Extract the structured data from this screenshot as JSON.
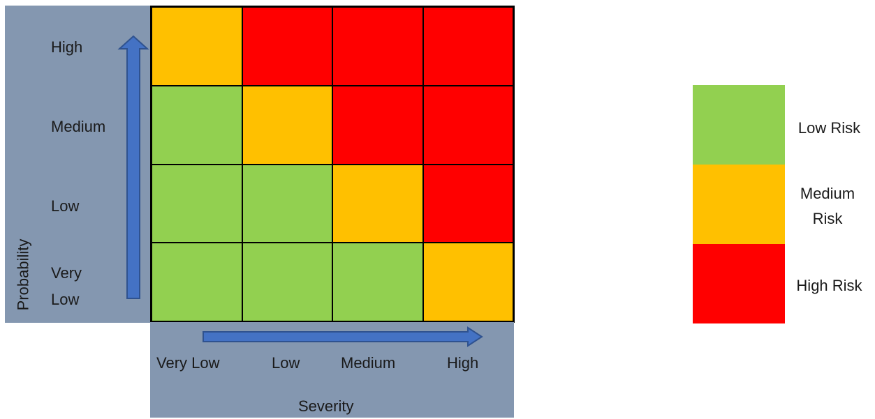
{
  "axes": {
    "probability_label": "Probability",
    "probability_levels": [
      "High",
      "Medium",
      "Low",
      "Very Low"
    ],
    "severity_label": "Severity",
    "severity_levels": [
      "Very Low",
      "Low",
      "Medium",
      "High"
    ]
  },
  "colors": {
    "low": "#92d050",
    "medium": "#ffc000",
    "high": "#ff0000",
    "panel": "#8497b0",
    "arrow": "#4472c4"
  },
  "matrix": [
    [
      "medium",
      "high",
      "high",
      "high"
    ],
    [
      "low",
      "medium",
      "high",
      "high"
    ],
    [
      "low",
      "low",
      "medium",
      "high"
    ],
    [
      "low",
      "low",
      "low",
      "medium"
    ]
  ],
  "legend": [
    {
      "key": "low",
      "label": "Low Risk"
    },
    {
      "key": "medium",
      "label": "Medium Risk"
    },
    {
      "key": "high",
      "label": "High Risk"
    }
  ]
}
